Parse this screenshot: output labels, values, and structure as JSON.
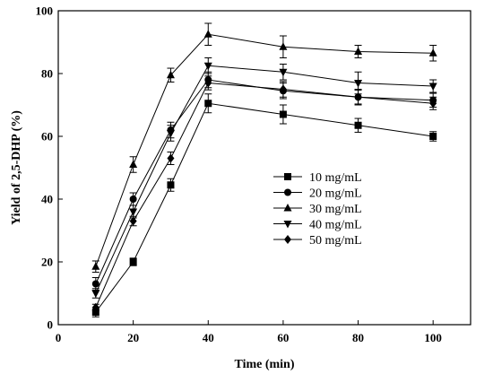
{
  "chart_data": {
    "type": "line",
    "title": "",
    "xlabel": "Time (min)",
    "ylabel": "Yield of 2,5-DHP (%)",
    "xlim": [
      0,
      110
    ],
    "ylim": [
      0,
      100
    ],
    "xticks": [
      0,
      20,
      40,
      60,
      80,
      100
    ],
    "yticks": [
      0,
      20,
      40,
      60,
      80,
      100
    ],
    "x": [
      10,
      20,
      30,
      40,
      60,
      80,
      100
    ],
    "grid": false,
    "legend_position": "center-right",
    "series": [
      {
        "name": "10 mg/mL",
        "marker": "square",
        "values": [
          4,
          20,
          44.5,
          70.5,
          67,
          63.5,
          60
        ],
        "errors": [
          1.5,
          1.2,
          2,
          3,
          3,
          2.2,
          1.5
        ]
      },
      {
        "name": "20 mg/mL",
        "marker": "circle",
        "values": [
          13,
          40,
          62,
          78,
          74.5,
          72.5,
          71.5
        ],
        "errors": [
          2,
          2,
          2.5,
          2.5,
          2.5,
          2.2,
          2.2
        ]
      },
      {
        "name": "30 mg/mL",
        "marker": "triangle-up",
        "values": [
          18.5,
          51,
          79.5,
          92.5,
          88.5,
          87,
          86.5
        ],
        "errors": [
          1.8,
          2.5,
          2.2,
          3.5,
          3.5,
          2,
          2.5
        ]
      },
      {
        "name": "40 mg/mL",
        "marker": "triangle-down",
        "values": [
          10,
          36,
          61,
          82.5,
          80.5,
          77,
          76
        ],
        "errors": [
          1.5,
          2,
          2.5,
          2.5,
          2.5,
          3.5,
          2
        ]
      },
      {
        "name": "50 mg/mL",
        "marker": "diamond",
        "values": [
          5.5,
          33,
          53,
          77,
          75,
          72.5,
          70.5
        ],
        "errors": [
          1,
          1.5,
          2,
          2.2,
          2.5,
          2.5,
          2
        ]
      }
    ]
  }
}
